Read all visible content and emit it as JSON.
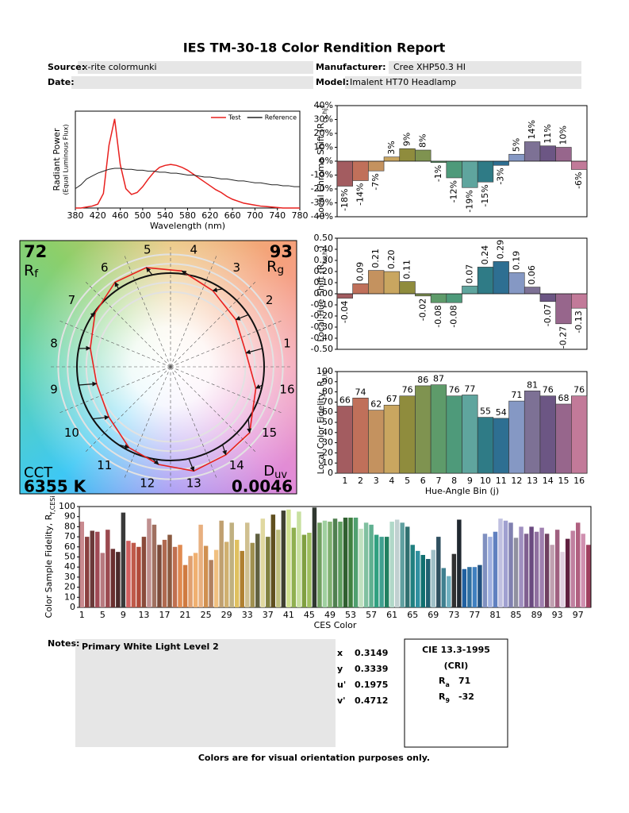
{
  "header": {
    "title": "IES TM-30-18 Color Rendition Report",
    "source_label": "Source:",
    "source": "x-rite colormunki",
    "manufacturer_label": "Manufacturer:",
    "manufacturer": "Cree XHP50.3 HI",
    "date_label": "Date:",
    "model_label": "Model:",
    "model": "Imalent HT70 Headlamp"
  },
  "chart_data": [
    {
      "type": "line",
      "xlabel": "Wavelength (nm)",
      "ylabel": [
        "Radiant Power",
        "(Equal Luminous Flux)"
      ],
      "x": [
        380,
        390,
        400,
        410,
        420,
        430,
        440,
        450,
        460,
        470,
        480,
        490,
        500,
        510,
        520,
        530,
        540,
        550,
        560,
        570,
        580,
        590,
        600,
        610,
        620,
        630,
        640,
        650,
        660,
        670,
        680,
        690,
        700,
        710,
        720,
        730,
        740,
        750,
        760,
        770,
        780
      ],
      "xlim": [
        380,
        780
      ],
      "xticks": [
        380,
        420,
        460,
        500,
        540,
        580,
        620,
        660,
        700,
        740,
        780
      ],
      "ylim": [
        0,
        1
      ],
      "legend": "upper-right",
      "series": [
        {
          "name": "Test",
          "color": "#e8201e",
          "values": [
            0,
            0,
            0.01,
            0.02,
            0.04,
            0.15,
            0.65,
            0.92,
            0.45,
            0.2,
            0.14,
            0.16,
            0.22,
            0.3,
            0.37,
            0.42,
            0.44,
            0.45,
            0.44,
            0.42,
            0.39,
            0.35,
            0.31,
            0.27,
            0.23,
            0.19,
            0.16,
            0.12,
            0.09,
            0.07,
            0.05,
            0.04,
            0.03,
            0.02,
            0.015,
            0.01,
            0.005,
            0,
            0,
            0,
            0
          ]
        },
        {
          "name": "Reference",
          "color": "#222222",
          "values": [
            0.2,
            0.24,
            0.3,
            0.33,
            0.36,
            0.38,
            0.4,
            0.41,
            0.41,
            0.4,
            0.4,
            0.39,
            0.39,
            0.38,
            0.38,
            0.37,
            0.37,
            0.36,
            0.36,
            0.35,
            0.34,
            0.34,
            0.33,
            0.32,
            0.32,
            0.31,
            0.3,
            0.3,
            0.29,
            0.28,
            0.28,
            0.27,
            0.26,
            0.26,
            0.25,
            0.24,
            0.24,
            0.23,
            0.23,
            0.22,
            0.22
          ]
        }
      ]
    },
    {
      "type": "bar",
      "ylabel": {
        "text": "Local Chroma Shift (R",
        "sub": "cs,hj",
        "end": ")"
      },
      "data_labels": "vertical",
      "values": [
        -18,
        -14,
        -7,
        3,
        9,
        8,
        -1,
        -12,
        -19,
        -15,
        -3,
        5,
        14,
        11,
        10,
        -6
      ],
      "value_labels": [
        "-18%",
        "-14%",
        "-7%",
        "3%",
        "9%",
        "8%",
        "-1%",
        "-12%",
        "-19%",
        "-15%",
        "-3%",
        "5%",
        "14%",
        "11%",
        "10%",
        "-6%"
      ],
      "colors": [
        "#a35c60",
        "#c0705a",
        "#c4925f",
        "#c9a660",
        "#8f8c3d",
        "#7f9350",
        "#5e9b6a",
        "#4e9a7a",
        "#5fa59e",
        "#2f7b86",
        "#2e6f92",
        "#8598c4",
        "#7d7195",
        "#6c5684",
        "#97668c",
        "#c27a99"
      ],
      "ylim": [
        -40,
        40
      ],
      "yticks": [
        {
          "value": -40,
          "label": "-40%"
        },
        {
          "value": -30,
          "label": "-30%"
        },
        {
          "value": -20,
          "label": "-20%"
        },
        {
          "value": -10,
          "label": "-10%"
        },
        {
          "value": 0,
          "label": "0%"
        },
        {
          "value": 10,
          "label": "10%"
        },
        {
          "value": 20,
          "label": "20%"
        },
        {
          "value": 30,
          "label": "30%"
        },
        {
          "value": 40,
          "label": "40%"
        }
      ]
    },
    {
      "type": "bar",
      "ylabel": {
        "text": "Local Hue Shift (R",
        "sub": "hs,hj",
        "end": ")"
      },
      "data_labels": "vertical",
      "values": [
        -0.04,
        0.09,
        0.21,
        0.2,
        0.11,
        -0.02,
        -0.08,
        -0.08,
        0.07,
        0.24,
        0.29,
        0.19,
        0.06,
        -0.07,
        -0.27,
        -0.13
      ],
      "value_labels": [
        "-0.04",
        "0.09",
        "0.21",
        "0.20",
        "0.11",
        "-0.02",
        "-0.08",
        "-0.08",
        "0.07",
        "0.24",
        "0.29",
        "0.19",
        "0.06",
        "-0.07",
        "-0.27",
        "-0.13"
      ],
      "colors": [
        "#a35c60",
        "#c0705a",
        "#c4925f",
        "#c9a660",
        "#8f8c3d",
        "#7f9350",
        "#5e9b6a",
        "#4e9a7a",
        "#5fa59e",
        "#2f7b86",
        "#2e6f92",
        "#8598c4",
        "#7d7195",
        "#6c5684",
        "#97668c",
        "#c27a99"
      ],
      "ylim": [
        -0.5,
        0.5
      ],
      "yticks": [
        {
          "value": -0.5,
          "label": "-0.50"
        },
        {
          "value": -0.4,
          "label": "-0.40"
        },
        {
          "value": -0.3,
          "label": "-0.30"
        },
        {
          "value": -0.2,
          "label": "-0.20"
        },
        {
          "value": -0.1,
          "label": "-0.10"
        },
        {
          "value": 0,
          "label": "0.00"
        },
        {
          "value": 0.1,
          "label": "0.10"
        },
        {
          "value": 0.2,
          "label": "0.20"
        },
        {
          "value": 0.3,
          "label": "0.30"
        },
        {
          "value": 0.4,
          "label": "0.40"
        },
        {
          "value": 0.5,
          "label": "0.50"
        }
      ]
    },
    {
      "type": "bar",
      "xlabel": "Hue-Angle Bin (j)",
      "ylabel": {
        "text": "Local Color Fidelity, R",
        "sub": "f,hj"
      },
      "data_labels": "horizontal",
      "categories": [
        1,
        2,
        3,
        4,
        5,
        6,
        7,
        8,
        9,
        10,
        11,
        12,
        13,
        14,
        15,
        16
      ],
      "values": [
        66,
        74,
        62,
        67,
        76,
        86,
        87,
        76,
        77,
        55,
        54,
        71,
        81,
        76,
        68,
        76
      ],
      "colors": [
        "#a35c60",
        "#c0705a",
        "#c4925f",
        "#c9a660",
        "#8f8c3d",
        "#7f9350",
        "#5e9b6a",
        "#4e9a7a",
        "#5fa59e",
        "#2f7b86",
        "#2e6f92",
        "#8598c4",
        "#7d7195",
        "#6c5684",
        "#97668c",
        "#c27a99"
      ],
      "ylim": [
        0,
        100
      ],
      "yticks": [
        0,
        10,
        20,
        30,
        40,
        50,
        60,
        70,
        80,
        90,
        100
      ]
    },
    {
      "type": "vector",
      "rf": 72,
      "rf_label": {
        "text": "R",
        "sub": "f"
      },
      "rg": 93,
      "rg_label": {
        "text": "R",
        "sub": "g"
      },
      "cct_label": "CCT",
      "cct": "6355 K",
      "duv_label": {
        "text": "D",
        "sub": "uv"
      },
      "duv": 0.0046,
      "bin_labels": [
        1,
        2,
        3,
        4,
        5,
        6,
        7,
        8,
        9,
        10,
        11,
        12,
        13,
        14,
        15,
        16
      ],
      "test_color": "#e8201e",
      "reference_color": "#111111"
    },
    {
      "type": "bar",
      "xlabel": "CES Color",
      "ylabel": {
        "text": "Color Sample Fidelity, R",
        "sub": "f,CESi"
      },
      "categories": [
        1,
        null,
        null,
        null,
        5,
        null,
        null,
        null,
        9,
        null,
        null,
        null,
        13,
        null,
        null,
        null,
        17,
        null,
        null,
        null,
        21,
        null,
        null,
        null,
        25,
        null,
        null,
        null,
        29,
        null,
        null,
        null,
        33,
        null,
        null,
        null,
        37,
        null,
        null,
        null,
        41,
        null,
        null,
        null,
        45,
        null,
        null,
        null,
        49,
        null,
        null,
        null,
        53,
        null,
        null,
        null,
        57,
        null,
        null,
        null,
        61,
        null,
        null,
        null,
        65,
        null,
        null,
        null,
        69,
        null,
        null,
        null,
        73,
        null,
        null,
        null,
        77,
        null,
        null,
        null,
        81,
        null,
        null,
        null,
        85,
        null,
        null,
        null,
        89,
        null,
        null,
        null,
        93,
        null,
        null,
        null,
        97,
        null,
        null
      ],
      "values": [
        85,
        70,
        76,
        75,
        54,
        77,
        58,
        55,
        94,
        66,
        64,
        60,
        70,
        88,
        82,
        62,
        67,
        72,
        60,
        62,
        42,
        51,
        54,
        82,
        61,
        47,
        57,
        86,
        65,
        84,
        67,
        56,
        84,
        64,
        73,
        88,
        70,
        92,
        77,
        96,
        97,
        79,
        95,
        72,
        74,
        99,
        84,
        86,
        85,
        88,
        85,
        89,
        89,
        89,
        78,
        84,
        82,
        72,
        70,
        70,
        85,
        87,
        84,
        80,
        62,
        56,
        52,
        48,
        57,
        70,
        39,
        31,
        53,
        87,
        38,
        40,
        40,
        42,
        73,
        70,
        75,
        88,
        86,
        84,
        69,
        80,
        73,
        80,
        75,
        79,
        73,
        62,
        77,
        55,
        68,
        76,
        84,
        73,
        62
      ],
      "colors": [
        "#c98a8f",
        "#8a4040",
        "#6b3a3a",
        "#a04a55",
        "#b87a80",
        "#9b4a50",
        "#6a2f2f",
        "#4a2a2a",
        "#3a3a3a",
        "#d06060",
        "#c05a4a",
        "#b04a3a",
        "#8a4a3a",
        "#c09090",
        "#a07060",
        "#7a4a3a",
        "#b06a50",
        "#8a5a40",
        "#c07050",
        "#e08a50",
        "#d07a40",
        "#e0a070",
        "#f0b070",
        "#e8b080",
        "#d09050",
        "#b08060",
        "#f0c080",
        "#c0a070",
        "#d0b070",
        "#c0b080",
        "#e0c060",
        "#b08030",
        "#d0c090",
        "#a09050",
        "#606040",
        "#e0d8a0",
        "#808040",
        "#605020",
        "#c0c080",
        "#404030",
        "#d0e090",
        "#90b050",
        "#c8e0a0",
        "#80a040",
        "#a0c060",
        "#303830",
        "#70a060",
        "#a0d0a0",
        "#80b070",
        "#508050",
        "#60a060",
        "#306030",
        "#408040",
        "#50a070",
        "#c0e0c0",
        "#80c0a0",
        "#60b090",
        "#30a080",
        "#40a090",
        "#208060",
        "#b0d8c8",
        "#c0d0d0",
        "#60a0a0",
        "#307070",
        "#208080",
        "#3090a0",
        "#107070",
        "#206070",
        "#a0c0c8",
        "#305060",
        "#408090",
        "#70b0c0",
        "#303030",
        "#202830",
        "#2060a0",
        "#3070a0",
        "#4080c0",
        "#205080",
        "#8090c0",
        "#a0b0e0",
        "#6080c0",
        "#c0c0e0",
        "#a0a0d0",
        "#8080b0",
        "#9090a0",
        "#a090c0",
        "#806090",
        "#6a4a80",
        "#9070a0",
        "#a080b0",
        "#704060",
        "#c0a0b0",
        "#a06080",
        "#e0d0e0",
        "#602040",
        "#c080a0",
        "#b06080",
        "#d090b0",
        "#a04060"
      ],
      "ylim": [
        0,
        100
      ],
      "yticks": [
        0,
        10,
        20,
        30,
        40,
        50,
        60,
        70,
        80,
        90,
        100
      ]
    }
  ],
  "notes": {
    "label": "Notes:",
    "text": "Primary White Light Level 2"
  },
  "chromaticity": [
    {
      "label": "x",
      "value": 0.3149
    },
    {
      "label": "y",
      "value": 0.3339
    },
    {
      "label": "u'",
      "value": 0.1975
    },
    {
      "label": "v'",
      "value": 0.4712
    }
  ],
  "cri": {
    "title": "CIE 13.3-1995",
    "subtitle": "(CRI)",
    "ra": {
      "text": "R",
      "sub": "a",
      "value": 71
    },
    "r9": {
      "text": "R",
      "sub": "9",
      "value": -32
    }
  },
  "footer": "Colors are for visual orientation purposes only."
}
